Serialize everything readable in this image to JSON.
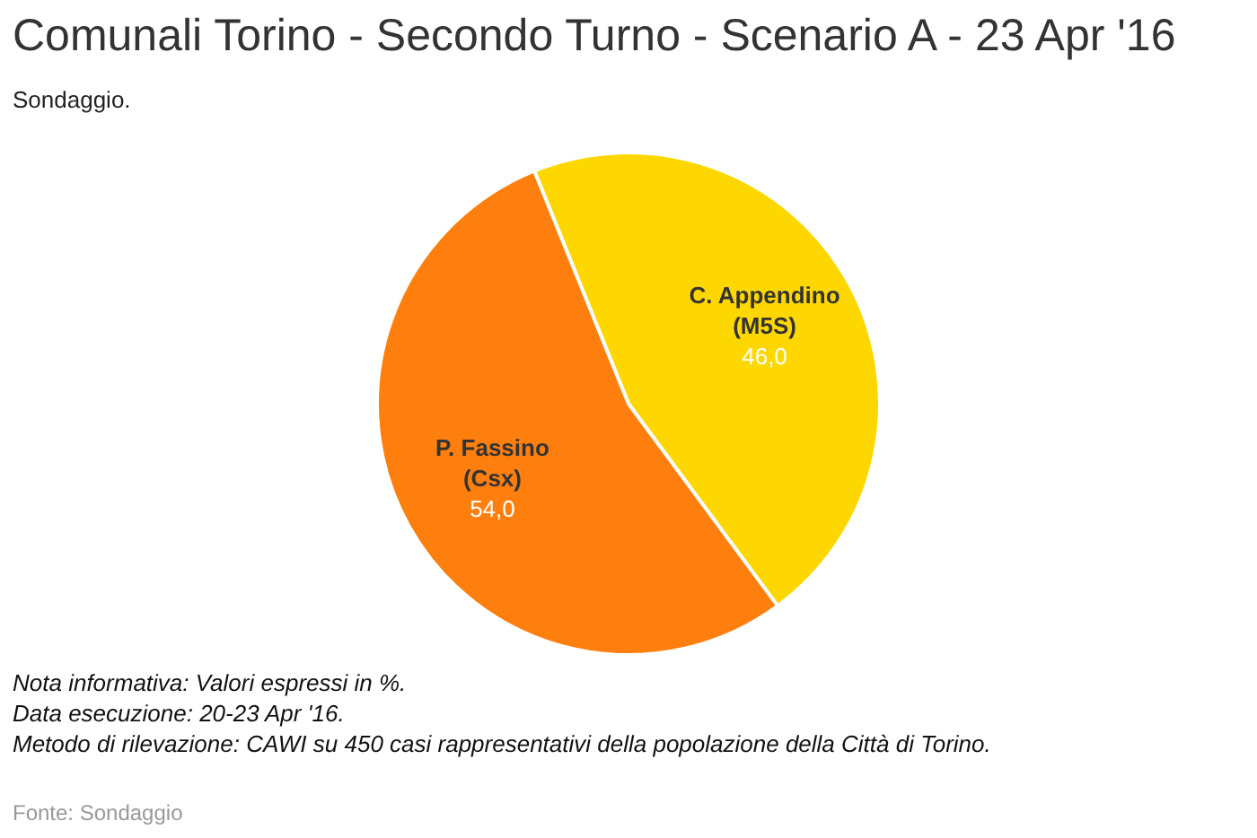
{
  "chart_data": {
    "type": "pie",
    "title": "Comunali Torino - Secondo Turno - Scenario A - 23 Apr '16",
    "subtitle": "Sondaggio.",
    "categories": [
      "C. Appendino (M5S)",
      "P. Fassino (Csx)"
    ],
    "values": [
      46,
      54
    ],
    "colors": [
      "#ffd700",
      "#ff7f0e"
    ],
    "value_labels": [
      "46,0",
      "54,0"
    ],
    "legend": false,
    "annotations": [
      "Nota informativa: Valori espressi in %.",
      "Data esecuzione: 20-23 Apr '16.",
      "Metodo di rilevazione: CAWI su 450 casi rappresentativi della popolazione della Città di Torino.",
      "Fonte: Sondaggio"
    ]
  }
}
